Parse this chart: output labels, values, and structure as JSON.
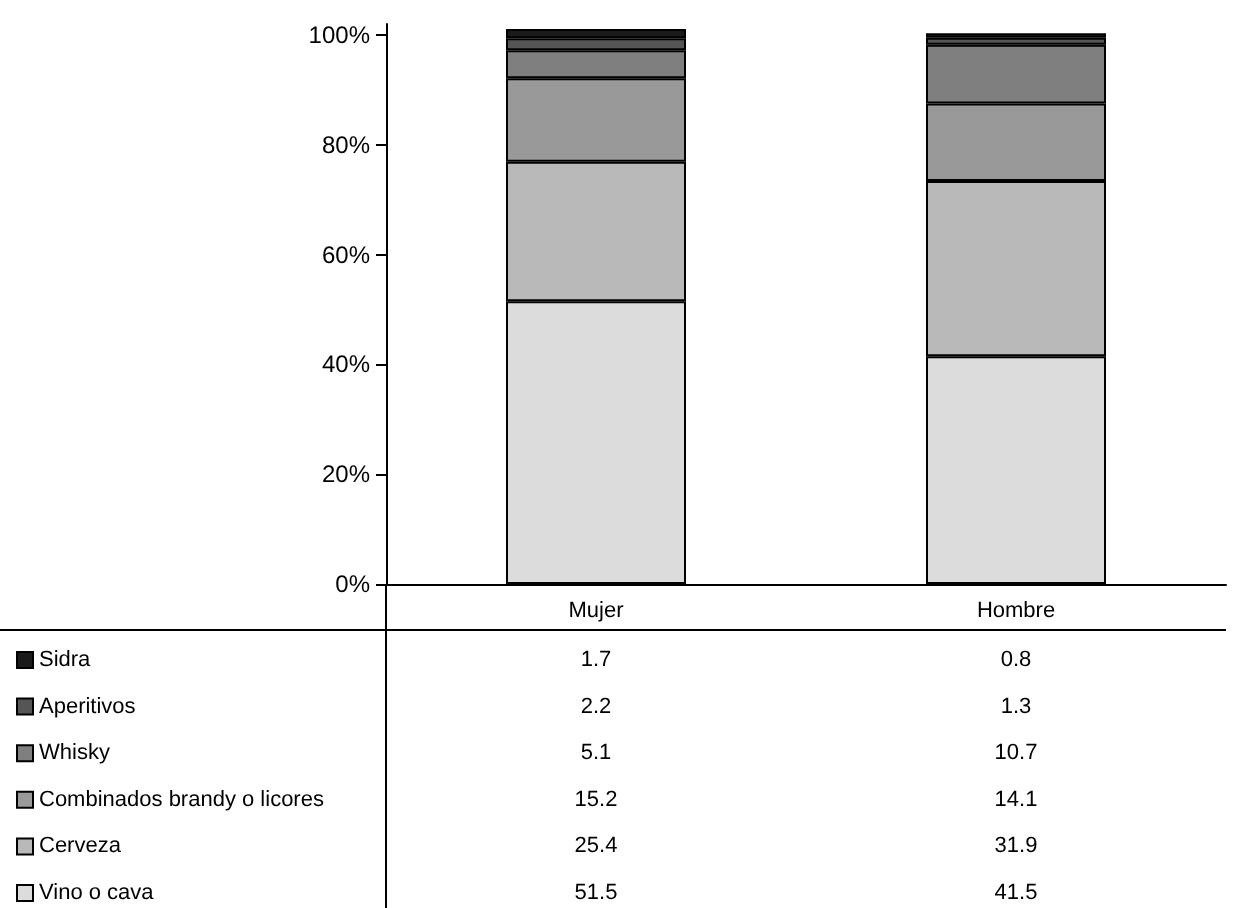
{
  "chart_data": {
    "type": "bar",
    "stacked": true,
    "categories": [
      "Mujer",
      "Hombre"
    ],
    "series": [
      {
        "name": "Vino o cava",
        "color": "#dcdcdc",
        "values": [
          51.5,
          41.5
        ]
      },
      {
        "name": "Cerveza",
        "color": "#b9b9b9",
        "values": [
          25.4,
          31.9
        ]
      },
      {
        "name": "Combinados brandy o licores",
        "color": "#999999",
        "values": [
          15.2,
          14.1
        ]
      },
      {
        "name": "Whisky",
        "color": "#7f7f7f",
        "values": [
          5.1,
          10.7
        ]
      },
      {
        "name": "Aperitivos",
        "color": "#555555",
        "values": [
          2.2,
          1.3
        ]
      },
      {
        "name": "Sidra",
        "color": "#1a1a1a",
        "values": [
          1.7,
          0.8
        ]
      }
    ],
    "ylim": [
      0,
      102
    ],
    "yticks": [
      {
        "value": 0,
        "label": "0%"
      },
      {
        "value": 20,
        "label": "20%"
      },
      {
        "value": 40,
        "label": "40%"
      },
      {
        "value": 60,
        "label": "60%"
      },
      {
        "value": 80,
        "label": "80%"
      },
      {
        "value": 100,
        "label": "100%"
      }
    ],
    "grid": false,
    "legend": "bottom left",
    "data_labels": true
  }
}
